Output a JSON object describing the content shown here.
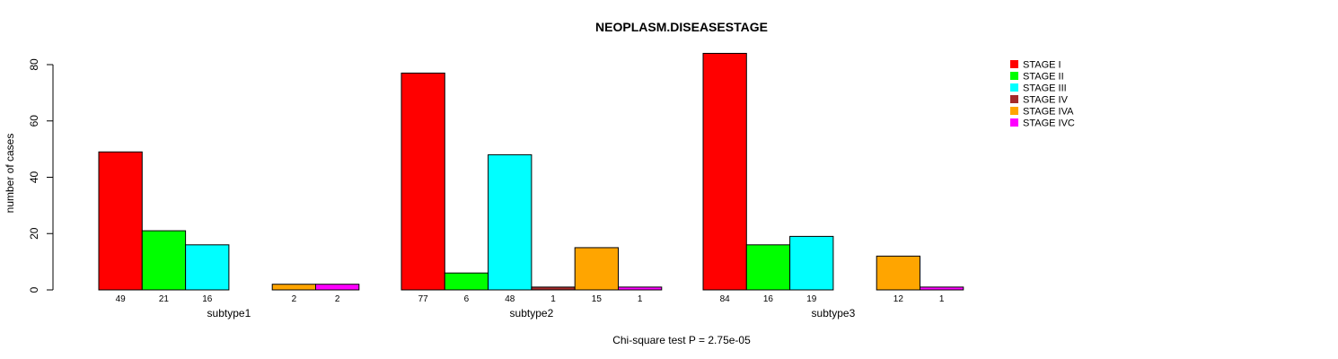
{
  "chart_data": {
    "type": "bar",
    "title": "NEOPLASM.DISEASESTAGE",
    "ylabel": "number of cases",
    "footer": "Chi-square test P = 2.75e-05",
    "ylim": [
      0,
      80
    ],
    "yticks": [
      0,
      20,
      40,
      60,
      80
    ],
    "groups": [
      "subtype1",
      "subtype2",
      "subtype3"
    ],
    "series": [
      {
        "name": "STAGE I",
        "color": "#ff0000",
        "values": [
          49,
          77,
          84
        ],
        "labels": [
          "49",
          "77",
          "84"
        ]
      },
      {
        "name": "STAGE II",
        "color": "#00ff00",
        "values": [
          21,
          6,
          16
        ],
        "labels": [
          "21",
          "6",
          "16"
        ]
      },
      {
        "name": "STAGE III",
        "color": "#00ffff",
        "values": [
          16,
          48,
          19
        ],
        "labels": [
          "16",
          "48",
          "19"
        ]
      },
      {
        "name": "STAGE IV",
        "color": "#a52a2a",
        "values": [
          0,
          1,
          0
        ],
        "labels": [
          "",
          "1",
          ""
        ]
      },
      {
        "name": "STAGE IVA",
        "color": "#ffa500",
        "values": [
          2,
          15,
          12
        ],
        "labels": [
          "2",
          "15",
          "12"
        ]
      },
      {
        "name": "STAGE IVC",
        "color": "#ff00ff",
        "values": [
          2,
          1,
          1
        ],
        "labels": [
          "2",
          "1",
          "1"
        ]
      }
    ],
    "legend_position": "top-right",
    "grid": false
  }
}
